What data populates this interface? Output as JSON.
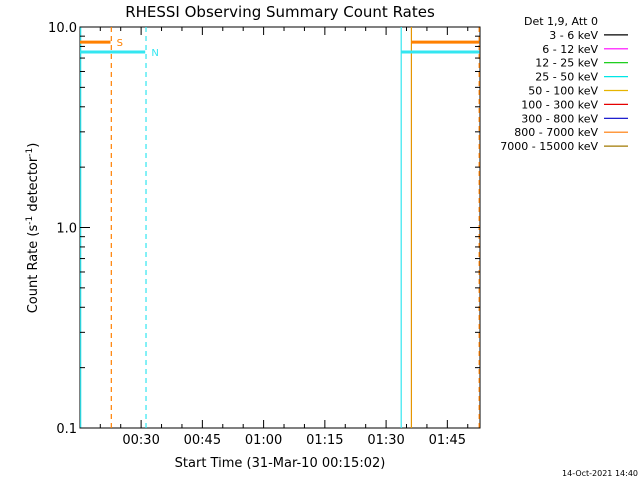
{
  "chart_data": {
    "type": "line",
    "title": "RHESSI Observing Summary Count Rates",
    "xlabel": "Start Time (31-Mar-10 00:15:02)",
    "ylabel_main": "Count Rate (s",
    "ylabel_sup1": "-1",
    "ylabel_mid": " detector",
    "ylabel_sup2": "-1",
    "ylabel_end": ")",
    "x_unit": "minutes since 00:00",
    "xlim": [
      15.03,
      113.0
    ],
    "ylim": [
      0.1,
      10.0
    ],
    "y_scale": "log",
    "grid": false,
    "x_ticks": [
      {
        "value": 30,
        "label": "00:30"
      },
      {
        "value": 45,
        "label": "00:45"
      },
      {
        "value": 60,
        "label": "01:00"
      },
      {
        "value": 75,
        "label": "01:15"
      },
      {
        "value": 90,
        "label": "01:30"
      },
      {
        "value": 105,
        "label": "01:45"
      }
    ],
    "y_ticks": [
      {
        "value": 0.1,
        "label": "0.1"
      },
      {
        "value": 1.0,
        "label": "1.0"
      },
      {
        "value": 10.0,
        "label": "10.0"
      }
    ],
    "legend": {
      "position": "right",
      "header": "Det 1,9, Att 0",
      "entries": [
        {
          "label": "3 - 6 keV",
          "color": "#000000"
        },
        {
          "label": "6 - 12 keV",
          "color": "#ff00ff"
        },
        {
          "label": "12 - 25 keV",
          "color": "#00c800"
        },
        {
          "label": "25 - 50 keV",
          "color": "#00e6e6"
        },
        {
          "label": "50 - 100 keV",
          "color": "#e6b400"
        },
        {
          "label": "100 - 300 keV",
          "color": "#e60000"
        },
        {
          "label": "300 - 800 keV",
          "color": "#0000c8"
        },
        {
          "label": "800 - 7000 keV",
          "color": "#ff7800"
        },
        {
          "label": "7000 - 15000 keV",
          "color": "#a07800"
        }
      ]
    },
    "segments": [
      {
        "name": "saa",
        "color": "#ff8000",
        "y": 8.4,
        "x": [
          15.03,
          22.5
        ]
      },
      {
        "name": "night",
        "color": "#33e6f0",
        "y": 7.5,
        "x": [
          15.03,
          31.0
        ]
      },
      {
        "name": "night",
        "color": "#33e6f0",
        "y": 7.5,
        "x": [
          93.7,
          112.8
        ]
      },
      {
        "name": "saa",
        "color": "#ff8000",
        "y": 8.4,
        "x": [
          96.2,
          112.8
        ]
      }
    ],
    "vlines": [
      {
        "x": 15.2,
        "color": "#33e6f0",
        "style": "solid"
      },
      {
        "x": 22.7,
        "color": "#ff8000",
        "style": "dashed"
      },
      {
        "x": 31.2,
        "color": "#33e6f0",
        "style": "dashed"
      },
      {
        "x": 93.7,
        "color": "#33e6f0",
        "style": "solid"
      },
      {
        "x": 96.2,
        "color": "#e69600",
        "style": "solid"
      },
      {
        "x": 112.8,
        "color": "#ff8000",
        "style": "dashed"
      }
    ],
    "annotations": [
      {
        "text": "S",
        "x": 24.0,
        "y": 8.4,
        "color": "#ff8000"
      },
      {
        "text": "N",
        "x": 32.5,
        "y": 7.5,
        "color": "#33e6f0"
      }
    ]
  },
  "timestamp": "14-Oct-2021 14:40"
}
